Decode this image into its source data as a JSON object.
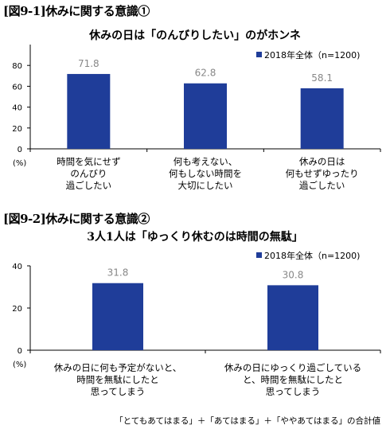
{
  "figure1": {
    "label": "[図9-1]休みに関する意識①"
  },
  "figure2": {
    "label": "[図9-2]休みに関する意識②"
  },
  "note": "「とてもあてはまる」＋「あてはまる」＋「ややあてはまる」の合計値",
  "chart_data": [
    {
      "type": "bar",
      "title": "休みの日は「のんびりしたい」のがホンネ",
      "unit_label": "(%)",
      "categories": [
        [
          "時間を気にせず",
          "のんびり",
          "過ごしたい"
        ],
        [
          "何も考えない、",
          "何もしない時間を",
          "大切にしたい"
        ],
        [
          "休みの日は",
          "何もせずゆったり",
          "過ごしたい"
        ]
      ],
      "series": [
        {
          "name": "2018年全体（n=1200)",
          "values": [
            71.8,
            62.8,
            58.1
          ],
          "color": "#1f3d99"
        }
      ],
      "data_labels": [
        "71.8",
        "62.8",
        "58.1"
      ],
      "ylim": [
        0,
        100
      ],
      "yticks": [
        0,
        20,
        40,
        60,
        80
      ],
      "legend_position": "top-right",
      "grid": false
    },
    {
      "type": "bar",
      "title": "3人1人は「ゆっくり休むのは時間の無駄」",
      "unit_label": "(%)",
      "categories": [
        [
          "休みの日に何も予定がないと、",
          "時間を無駄にしたと",
          "思ってしまう"
        ],
        [
          "休みの日にゆっくり過ごしている",
          "と、時間を無駄にしたと",
          "思ってしまう"
        ]
      ],
      "series": [
        {
          "name": "2018年全体（n=1200)",
          "values": [
            31.8,
            30.8
          ],
          "color": "#1f3d99"
        }
      ],
      "data_labels": [
        "31.8",
        "30.8"
      ],
      "ylim": [
        0,
        40
      ],
      "yticks": [
        0,
        20,
        40
      ],
      "legend_position": "top-right",
      "grid": false
    }
  ]
}
